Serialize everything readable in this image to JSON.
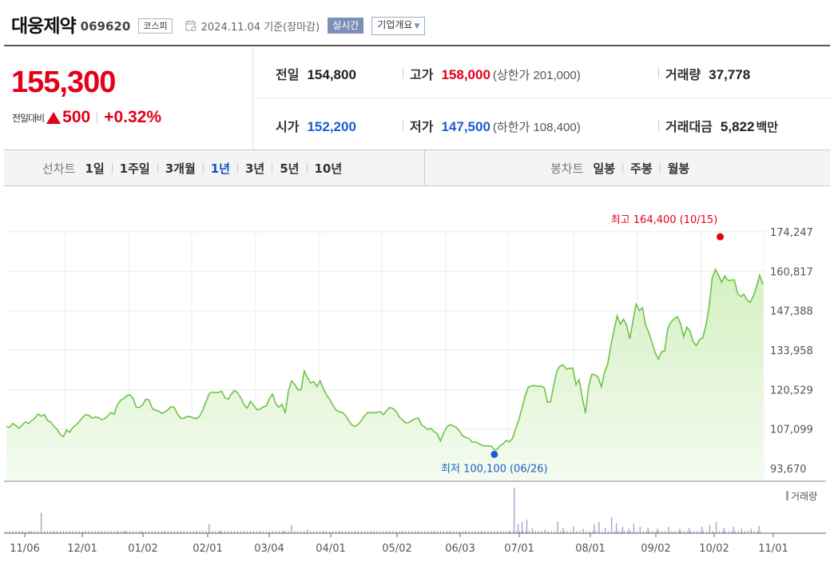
{
  "header": {
    "company_name": "대웅제약",
    "stock_code": "069620",
    "market": "코스피",
    "date_text": "2024.11.04 기준(장마감)",
    "realtime_label": "실시간",
    "company_info_label": "기업개요"
  },
  "summary": {
    "current_price": "155,300",
    "change_label": "전일대비",
    "change_amount": "500",
    "change_percent": "+0.32%",
    "prev_close_label": "전일",
    "prev_close": "154,800",
    "high_label": "고가",
    "high": "158,000",
    "upper_limit": "(상한가 201,000)",
    "volume_label": "거래량",
    "volume": "37,778",
    "open_label": "시가",
    "open": "152,200",
    "low_label": "저가",
    "low": "147,500",
    "lower_limit": "(하한가 108,400)",
    "trade_value_label": "거래대금",
    "trade_value": "5,822",
    "trade_value_unit": "백만"
  },
  "tabs": {
    "line_chart_label": "선차트",
    "periods": [
      "1일",
      "1주일",
      "3개월",
      "1년",
      "3년",
      "5년",
      "10년"
    ],
    "active_period": "1년",
    "candle_chart_label": "봉차트",
    "candle_periods": [
      "일봉",
      "주봉",
      "월봉"
    ]
  },
  "colors": {
    "line": "#6cc545",
    "fill_top": "#d4f0c2",
    "fill_bottom": "#f4fbef",
    "high_marker": "#e3001b",
    "low_marker": "#1a5fd1",
    "volume_bar": "#a7a0c9"
  },
  "chart_data": {
    "type": "area",
    "y_ticks": [
      "174,247",
      "160,817",
      "147,388",
      "133,958",
      "120,529",
      "107,099",
      "93,670"
    ],
    "ylim": [
      93670,
      174247
    ],
    "x_ticks": [
      "11/06",
      "12/01",
      "01/02",
      "02/01",
      "03/04",
      "04/01",
      "05/02",
      "06/03",
      "07/01",
      "08/01",
      "09/02",
      "10/02",
      "11/01"
    ],
    "high_annotation": "최고 164,400 (10/15)",
    "high_value": 164400,
    "low_annotation": "최저 100,100 (06/26)",
    "low_value": 100100,
    "volume_legend": "거래량",
    "price_series": [
      [
        0,
        108000
      ],
      [
        4,
        107700
      ],
      [
        8,
        109000
      ],
      [
        12,
        108300
      ],
      [
        16,
        107300
      ],
      [
        20,
        108500
      ],
      [
        24,
        109500
      ],
      [
        28,
        109000
      ],
      [
        32,
        110000
      ],
      [
        36,
        110800
      ],
      [
        40,
        112200
      ],
      [
        44,
        111500
      ],
      [
        48,
        112000
      ],
      [
        52,
        110000
      ],
      [
        56,
        109500
      ],
      [
        60,
        108000
      ],
      [
        64,
        107000
      ],
      [
        68,
        105300
      ],
      [
        72,
        104500
      ],
      [
        76,
        106800
      ],
      [
        80,
        106000
      ],
      [
        84,
        107700
      ],
      [
        88,
        108500
      ],
      [
        92,
        109600
      ],
      [
        96,
        111000
      ],
      [
        100,
        112000
      ],
      [
        104,
        111800
      ],
      [
        108,
        110800
      ],
      [
        112,
        111200
      ],
      [
        116,
        111000
      ],
      [
        120,
        110300
      ],
      [
        124,
        110600
      ],
      [
        128,
        111600
      ],
      [
        132,
        112700
      ],
      [
        136,
        112200
      ],
      [
        140,
        115300
      ],
      [
        144,
        116800
      ],
      [
        148,
        117500
      ],
      [
        152,
        118400
      ],
      [
        156,
        118800
      ],
      [
        160,
        117500
      ],
      [
        164,
        114500
      ],
      [
        168,
        114500
      ],
      [
        172,
        115300
      ],
      [
        176,
        117300
      ],
      [
        180,
        117000
      ],
      [
        184,
        114200
      ],
      [
        188,
        113500
      ],
      [
        192,
        113300
      ],
      [
        196,
        112400
      ],
      [
        200,
        112900
      ],
      [
        204,
        113700
      ],
      [
        208,
        114800
      ],
      [
        212,
        114400
      ],
      [
        216,
        112200
      ],
      [
        220,
        110800
      ],
      [
        224,
        110700
      ],
      [
        228,
        111400
      ],
      [
        232,
        111300
      ],
      [
        236,
        110900
      ],
      [
        240,
        110600
      ],
      [
        244,
        111500
      ],
      [
        248,
        113600
      ],
      [
        252,
        116400
      ],
      [
        256,
        119200
      ],
      [
        260,
        119700
      ],
      [
        264,
        119500
      ],
      [
        268,
        119600
      ],
      [
        272,
        119900
      ],
      [
        276,
        117700
      ],
      [
        280,
        117300
      ],
      [
        284,
        119000
      ],
      [
        288,
        120300
      ],
      [
        292,
        119400
      ],
      [
        296,
        117700
      ],
      [
        300,
        115400
      ],
      [
        304,
        114200
      ],
      [
        308,
        116500
      ],
      [
        312,
        115200
      ],
      [
        316,
        113700
      ],
      [
        320,
        113800
      ],
      [
        324,
        114600
      ],
      [
        328,
        115000
      ],
      [
        332,
        117500
      ],
      [
        336,
        119000
      ],
      [
        340,
        115800
      ],
      [
        344,
        114500
      ],
      [
        348,
        115500
      ],
      [
        352,
        112500
      ],
      [
        356,
        120000
      ],
      [
        360,
        123500
      ],
      [
        364,
        122300
      ],
      [
        368,
        120400
      ],
      [
        372,
        120500
      ],
      [
        376,
        126900
      ],
      [
        380,
        124600
      ],
      [
        384,
        122800
      ],
      [
        388,
        123200
      ],
      [
        392,
        121600
      ],
      [
        396,
        123500
      ],
      [
        400,
        121000
      ],
      [
        404,
        118800
      ],
      [
        408,
        117300
      ],
      [
        412,
        115300
      ],
      [
        416,
        113600
      ],
      [
        420,
        113000
      ],
      [
        424,
        112800
      ],
      [
        428,
        111800
      ],
      [
        432,
        110000
      ],
      [
        436,
        108600
      ],
      [
        440,
        108000
      ],
      [
        444,
        108700
      ],
      [
        448,
        109900
      ],
      [
        452,
        111500
      ],
      [
        456,
        112700
      ],
      [
        460,
        112700
      ],
      [
        464,
        112600
      ],
      [
        468,
        112800
      ],
      [
        472,
        113000
      ],
      [
        476,
        112000
      ],
      [
        480,
        113400
      ],
      [
        484,
        114400
      ],
      [
        488,
        114100
      ],
      [
        492,
        113100
      ],
      [
        496,
        111200
      ],
      [
        500,
        110200
      ],
      [
        504,
        109200
      ],
      [
        508,
        109300
      ],
      [
        512,
        110000
      ],
      [
        516,
        110600
      ],
      [
        520,
        110900
      ],
      [
        524,
        108500
      ],
      [
        528,
        107800
      ],
      [
        532,
        107000
      ],
      [
        536,
        107300
      ],
      [
        540,
        106200
      ],
      [
        544,
        105500
      ],
      [
        548,
        103000
      ],
      [
        552,
        105800
      ],
      [
        556,
        107800
      ],
      [
        560,
        108600
      ],
      [
        564,
        108200
      ],
      [
        568,
        107700
      ],
      [
        572,
        106400
      ],
      [
        576,
        104800
      ],
      [
        580,
        104200
      ],
      [
        584,
        103900
      ],
      [
        588,
        102600
      ],
      [
        592,
        102700
      ],
      [
        596,
        102200
      ],
      [
        600,
        101600
      ],
      [
        604,
        101300
      ],
      [
        608,
        101400
      ],
      [
        612,
        101300
      ],
      [
        616,
        100100
      ],
      [
        619,
        100100
      ],
      [
        623,
        101400
      ],
      [
        627,
        102000
      ],
      [
        631,
        103200
      ],
      [
        635,
        102700
      ],
      [
        639,
        103900
      ],
      [
        643,
        107300
      ],
      [
        647,
        110300
      ],
      [
        651,
        114300
      ],
      [
        655,
        118600
      ],
      [
        659,
        121400
      ],
      [
        663,
        121800
      ],
      [
        667,
        121900
      ],
      [
        671,
        121600
      ],
      [
        675,
        121700
      ],
      [
        679,
        121100
      ],
      [
        683,
        116300
      ],
      [
        687,
        116400
      ],
      [
        691,
        122000
      ],
      [
        695,
        126900
      ],
      [
        699,
        128600
      ],
      [
        703,
        128900
      ],
      [
        707,
        127500
      ],
      [
        711,
        127800
      ],
      [
        715,
        127800
      ],
      [
        719,
        122200
      ],
      [
        723,
        123900
      ],
      [
        727,
        117800
      ],
      [
        731,
        112500
      ],
      [
        735,
        121600
      ],
      [
        739,
        125700
      ],
      [
        743,
        125600
      ],
      [
        747,
        124700
      ],
      [
        751,
        121500
      ],
      [
        755,
        126300
      ],
      [
        759,
        129200
      ],
      [
        763,
        135400
      ],
      [
        767,
        140600
      ],
      [
        771,
        145700
      ],
      [
        775,
        142800
      ],
      [
        779,
        144500
      ],
      [
        783,
        142500
      ],
      [
        787,
        137800
      ],
      [
        791,
        144000
      ],
      [
        795,
        149600
      ],
      [
        799,
        147400
      ],
      [
        803,
        148400
      ],
      [
        807,
        142500
      ],
      [
        811,
        139900
      ],
      [
        815,
        136500
      ],
      [
        819,
        133100
      ],
      [
        823,
        130800
      ],
      [
        827,
        133400
      ],
      [
        831,
        133700
      ],
      [
        835,
        141400
      ],
      [
        839,
        143600
      ],
      [
        843,
        144600
      ],
      [
        847,
        145400
      ],
      [
        851,
        143000
      ],
      [
        855,
        138500
      ],
      [
        859,
        141800
      ],
      [
        863,
        140400
      ],
      [
        867,
        136800
      ],
      [
        871,
        135500
      ],
      [
        875,
        137600
      ],
      [
        879,
        138100
      ],
      [
        883,
        142300
      ],
      [
        887,
        148700
      ],
      [
        891,
        158500
      ],
      [
        895,
        161500
      ],
      [
        899,
        159400
      ],
      [
        903,
        157100
      ],
      [
        907,
        159200
      ],
      [
        911,
        157700
      ],
      [
        915,
        157800
      ],
      [
        919,
        157900
      ],
      [
        923,
        153300
      ],
      [
        927,
        152200
      ],
      [
        931,
        153000
      ],
      [
        935,
        151000
      ],
      [
        939,
        150200
      ],
      [
        943,
        152400
      ],
      [
        947,
        155700
      ],
      [
        951,
        159500
      ],
      [
        955,
        156300
      ]
    ],
    "volume_series": [
      [
        12,
        0.03
      ],
      [
        20,
        0.05
      ],
      [
        30,
        0.04
      ],
      [
        44,
        0.45
      ],
      [
        60,
        0.05
      ],
      [
        80,
        0.03
      ],
      [
        100,
        0.04
      ],
      [
        120,
        0.05
      ],
      [
        140,
        0.06
      ],
      [
        150,
        0.05
      ],
      [
        170,
        0.04
      ],
      [
        200,
        0.05
      ],
      [
        220,
        0.04
      ],
      [
        240,
        0.06
      ],
      [
        256,
        0.2
      ],
      [
        270,
        0.06
      ],
      [
        300,
        0.05
      ],
      [
        320,
        0.04
      ],
      [
        350,
        0.05
      ],
      [
        360,
        0.18
      ],
      [
        380,
        0.08
      ],
      [
        400,
        0.06
      ],
      [
        420,
        0.05
      ],
      [
        440,
        0.04
      ],
      [
        460,
        0.05
      ],
      [
        480,
        0.04
      ],
      [
        500,
        0.05
      ],
      [
        520,
        0.04
      ],
      [
        540,
        0.06
      ],
      [
        560,
        0.04
      ],
      [
        580,
        0.05
      ],
      [
        600,
        0.05
      ],
      [
        620,
        0.04
      ],
      [
        635,
        0.05
      ],
      [
        641,
        1.0
      ],
      [
        646,
        0.2
      ],
      [
        651,
        0.25
      ],
      [
        657,
        0.3
      ],
      [
        664,
        0.1
      ],
      [
        680,
        0.08
      ],
      [
        696,
        0.26
      ],
      [
        703,
        0.12
      ],
      [
        716,
        0.15
      ],
      [
        728,
        0.1
      ],
      [
        742,
        0.2
      ],
      [
        748,
        0.25
      ],
      [
        756,
        0.12
      ],
      [
        764,
        0.35
      ],
      [
        770,
        0.22
      ],
      [
        778,
        0.14
      ],
      [
        786,
        0.1
      ],
      [
        792,
        0.2
      ],
      [
        800,
        0.14
      ],
      [
        810,
        0.12
      ],
      [
        822,
        0.1
      ],
      [
        836,
        0.14
      ],
      [
        850,
        0.1
      ],
      [
        862,
        0.12
      ],
      [
        878,
        0.14
      ],
      [
        888,
        0.18
      ],
      [
        896,
        0.25
      ],
      [
        906,
        0.12
      ],
      [
        918,
        0.14
      ],
      [
        928,
        0.1
      ],
      [
        940,
        0.1
      ],
      [
        950,
        0.16
      ]
    ]
  }
}
